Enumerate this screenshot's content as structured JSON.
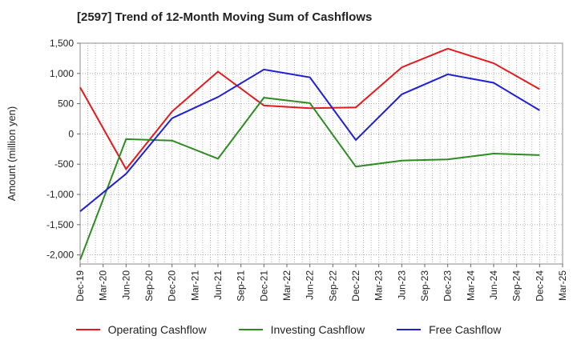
{
  "chart_data": {
    "type": "line",
    "title": "[2597]  Trend of 12-Month Moving Sum of Cashflows",
    "ylabel": "Amount (million yen)",
    "xlabel": "",
    "ylim": [
      -2150,
      1500
    ],
    "yticks": [
      1500,
      1000,
      500,
      0,
      -500,
      -1000,
      -1500,
      -2000
    ],
    "ytick_labels": [
      "1,500",
      "1,000",
      "500",
      "0",
      "-500",
      "-1,000",
      "-1,500",
      "-2,000"
    ],
    "x_tick_labels": [
      "Dec-19",
      "Mar-20",
      "Jun-20",
      "Sep-20",
      "Dec-20",
      "Mar-21",
      "Jun-21",
      "Sep-21",
      "Dec-21",
      "Mar-22",
      "Jun-22",
      "Sep-22",
      "Dec-22",
      "Mar-23",
      "Jun-23",
      "Sep-23",
      "Dec-23",
      "Mar-24",
      "Jun-24",
      "Sep-24",
      "Dec-24",
      "Mar-25"
    ],
    "grid": true,
    "legend_position": "bottom",
    "series": [
      {
        "name": "Operating Cashflow",
        "color": "#e41a1c",
        "x": [
          "Dec-19",
          "Jun-20",
          "Dec-20",
          "Jun-21",
          "Dec-21",
          "Jun-22",
          "Dec-22",
          "Jun-23",
          "Dec-23",
          "Jun-24",
          "Dec-24"
        ],
        "values": [
          770,
          -580,
          370,
          1030,
          470,
          425,
          440,
          1100,
          1410,
          1170,
          740
        ]
      },
      {
        "name": "Investing Cashflow",
        "color": "#2e8b22",
        "x": [
          "Dec-19",
          "Jun-20",
          "Dec-20",
          "Jun-21",
          "Dec-21",
          "Jun-22",
          "Dec-22",
          "Jun-23",
          "Dec-23",
          "Jun-24",
          "Dec-24"
        ],
        "values": [
          -2080,
          -85,
          -110,
          -410,
          600,
          510,
          -540,
          -440,
          -420,
          -325,
          -350
        ]
      },
      {
        "name": "Free Cashflow",
        "color": "#1f1fd6",
        "x": [
          "Dec-19",
          "Jun-20",
          "Dec-20",
          "Jun-21",
          "Dec-21",
          "Jun-22",
          "Dec-22",
          "Jun-23",
          "Dec-23",
          "Jun-24",
          "Dec-24"
        ],
        "values": [
          -1280,
          -660,
          260,
          610,
          1065,
          935,
          -100,
          655,
          985,
          845,
          390
        ]
      }
    ]
  }
}
